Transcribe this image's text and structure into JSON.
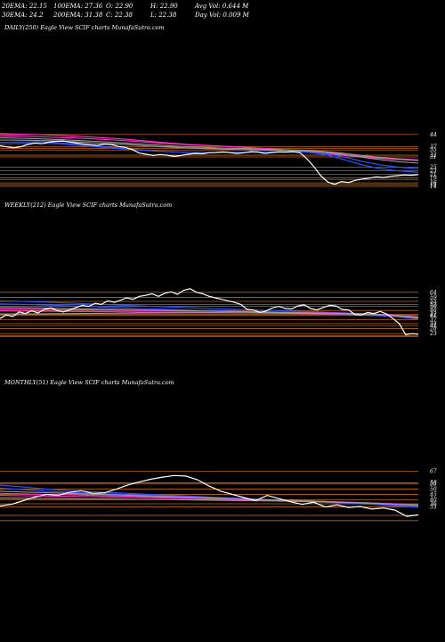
{
  "stats": {
    "ema20": "20EMA: 22.15",
    "ema100": "100EMA: 27.36",
    "open": "O: 22.90",
    "high": "H: 22.90",
    "avg_vol": "Avg Vol: 0.644 M",
    "ema30": "30EMA: 24.2",
    "ema200": "200EMA: 31.38",
    "close": "C: 22.38",
    "low": "L: 22.38",
    "day_vol": "Day Vol: 0.009 M"
  },
  "panels": {
    "daily": {
      "title": "DAILY(250) Eagle   View  SCIF charts MunafaSutra.com"
    },
    "weekly": {
      "title": "WEEKLY(212) Eagle   View  SCIF charts MunafaSutra.com"
    },
    "monthly": {
      "title": "MONTHLY(51) Eagle   View  SCIF charts MunafaSutra.com"
    }
  },
  "colors": {
    "background": "#000000",
    "price_line": "#ffffff",
    "level_line": "#b8651d",
    "ema_blue": "#3355ff",
    "ema_magenta": "#ff33cc",
    "ema_gray": "#9a9a9a"
  },
  "chart_data": [
    {
      "type": "line",
      "name": "daily",
      "ylim": [
        14,
        48
      ],
      "levels": [
        44,
        37,
        36,
        35,
        32,
        31,
        25,
        23,
        21,
        19,
        18,
        16,
        15,
        14
      ],
      "level_labels": [
        "44",
        "37",
        "35",
        "32",
        "31",
        "25",
        "23",
        "21",
        "19",
        "16",
        "15",
        "14"
      ],
      "price": [
        37.5,
        36.8,
        36.2,
        36.9,
        38.2,
        39.0,
        38.6,
        39.5,
        40.0,
        40.2,
        39.6,
        39.0,
        38.4,
        38.0,
        37.7,
        38.4,
        38.2,
        37.0,
        36.5,
        35.2,
        33.2,
        32.5,
        31.8,
        32.4,
        32.0,
        31.3,
        31.8,
        32.6,
        33.0,
        32.8,
        33.4,
        33.6,
        33.9,
        33.5,
        33.0,
        33.4,
        34.1,
        33.9,
        33.0,
        33.6,
        33.9,
        33.8,
        34.0,
        33.5,
        30.0,
        25.5,
        20.2,
        16.5,
        15.2,
        16.8,
        16.2,
        17.5,
        18.2,
        18.8,
        19.5,
        19.1,
        19.8,
        20.2,
        20.6,
        20.4,
        20.8
      ],
      "emas": [
        {
          "color": "ema_magenta",
          "values": [
            44.5,
            44.2,
            43.9,
            43.5,
            43.0,
            42.4,
            41.7,
            40.9,
            39.9,
            39.0,
            38.2,
            37.6,
            37.1,
            36.5,
            35.8,
            35.1,
            34.2,
            33.0,
            32.0,
            31.0,
            30.2,
            29.5,
            29.0
          ]
        },
        {
          "color": "ema_magenta",
          "values": [
            43.2,
            43.0,
            42.7,
            42.3,
            41.9,
            41.4,
            40.8,
            40.1,
            39.3,
            38.6,
            38.0,
            37.5,
            37.0,
            36.4,
            35.7,
            35.0,
            34.2,
            33.2,
            32.3,
            31.4,
            30.6,
            29.9,
            29.3
          ]
        },
        {
          "color": "ema_blue",
          "values": [
            39.5,
            39.6,
            39.7,
            39.3,
            38.5,
            37.5,
            36.4,
            35.5,
            34.6,
            34.0,
            33.6,
            33.5,
            33.6,
            33.7,
            33.8,
            33.9,
            34.0,
            32.5,
            29.8,
            26.5,
            24.2,
            22.9,
            22.1
          ]
        },
        {
          "color": "ema_blue",
          "values": [
            38.5,
            38.8,
            38.9,
            38.6,
            37.8,
            36.9,
            36.0,
            35.2,
            34.5,
            34.0,
            33.7,
            33.6,
            33.6,
            33.7,
            33.8,
            33.9,
            34.0,
            33.1,
            31.2,
            28.6,
            26.4,
            25.0,
            24.2
          ]
        },
        {
          "color": "ema_gray",
          "values": [
            40.8,
            40.7,
            40.5,
            40.2,
            39.7,
            39.1,
            38.5,
            37.9,
            37.2,
            36.6,
            36.1,
            35.7,
            35.4,
            35.1,
            34.9,
            34.7,
            34.5,
            33.9,
            32.6,
            30.9,
            29.4,
            28.2,
            27.4
          ]
        },
        {
          "color": "ema_gray",
          "values": [
            42.0,
            41.8,
            41.5,
            41.1,
            40.6,
            40.0,
            39.4,
            38.7,
            38.0,
            37.4,
            36.8,
            36.4,
            36.0,
            35.7,
            35.4,
            35.1,
            34.8,
            34.2,
            33.2,
            31.9,
            30.7,
            29.7,
            28.9
          ]
        }
      ]
    },
    {
      "type": "line",
      "name": "weekly",
      "ylim": [
        17,
        70
      ],
      "levels": [
        64,
        59,
        55,
        52,
        50,
        46,
        42,
        41,
        37,
        33,
        31,
        28,
        23,
        21,
        20
      ],
      "level_labels": [
        "64",
        "59",
        "55",
        "52",
        "50",
        "46",
        "42",
        "41",
        "37",
        "33",
        "31",
        "28",
        "23"
      ],
      "price": [
        38.0,
        41.5,
        40.0,
        44.5,
        43.0,
        45.5,
        43.5,
        47.0,
        48.5,
        46.0,
        44.5,
        46.5,
        49.0,
        51.0,
        50.0,
        53.0,
        52.0,
        55.5,
        54.0,
        56.0,
        58.5,
        57.0,
        60.0,
        61.0,
        62.5,
        60.0,
        63.0,
        64.5,
        62.0,
        66.0,
        67.5,
        64.0,
        62.5,
        60.0,
        58.5,
        57.0,
        55.5,
        54.0,
        52.0,
        47.0,
        46.5,
        44.0,
        45.5,
        48.5,
        50.0,
        48.0,
        47.5,
        50.5,
        51.5,
        48.0,
        46.5,
        49.0,
        51.0,
        50.5,
        47.0,
        46.5,
        42.0,
        41.5,
        44.0,
        43.0,
        45.0,
        42.5,
        38.0,
        33.0,
        22.0,
        23.0,
        22.5
      ],
      "emas": [
        {
          "color": "ema_blue",
          "values": [
            55.5,
            54.8,
            53.8,
            52.8,
            51.6,
            50.5,
            49.5,
            48.5,
            47.5,
            46.6,
            45.8,
            44.9,
            44.0,
            42.8,
            41.4,
            38.5
          ]
        },
        {
          "color": "ema_blue",
          "values": [
            52.5,
            52.0,
            51.0,
            50.0,
            49.0,
            48.0,
            47.0,
            46.2,
            45.5,
            44.8,
            44.0,
            43.3,
            42.5,
            41.5,
            40.2,
            37.5
          ]
        },
        {
          "color": "ema_magenta",
          "values": [
            47.5,
            47.2,
            46.8,
            46.5,
            46.2,
            45.9,
            45.6,
            45.3,
            45.0,
            44.7,
            44.3,
            43.9,
            43.5,
            42.8,
            41.8,
            39.5
          ]
        },
        {
          "color": "ema_magenta",
          "values": [
            45.5,
            45.3,
            45.1,
            44.9,
            44.7,
            44.5,
            44.3,
            44.1,
            43.8,
            43.5,
            43.2,
            42.9,
            42.5,
            41.9,
            41.0,
            39.0
          ]
        },
        {
          "color": "ema_gray",
          "values": [
            49.0,
            48.6,
            48.1,
            47.6,
            47.1,
            46.6,
            46.1,
            45.6,
            45.1,
            44.6,
            44.1,
            43.6,
            43.1,
            42.5,
            41.6,
            39.0
          ]
        },
        {
          "color": "ema_gray",
          "values": [
            42.5,
            42.6,
            42.8,
            43.0,
            43.2,
            43.4,
            43.6,
            43.7,
            43.7,
            43.6,
            43.4,
            43.1,
            42.7,
            42.1,
            41.3,
            38.5
          ]
        }
      ]
    },
    {
      "type": "line",
      "name": "monthly",
      "ylim": [
        19,
        82
      ],
      "levels": [
        67,
        56,
        55,
        50,
        45,
        40,
        36,
        33,
        25,
        20
      ],
      "level_labels": [
        "67",
        "56",
        "55",
        "50",
        "45",
        "40",
        "36",
        "33"
      ],
      "price": [
        34.0,
        35.5,
        39.0,
        42.5,
        45.0,
        44.0,
        47.0,
        48.5,
        46.0,
        46.5,
        50.0,
        54.0,
        57.0,
        59.5,
        61.5,
        63.0,
        62.5,
        59.0,
        53.0,
        48.0,
        45.0,
        42.0,
        39.0,
        44.0,
        41.0,
        38.0,
        35.5,
        37.5,
        33.0,
        35.0,
        32.5,
        33.5,
        31.0,
        32.0,
        30.0,
        24.0,
        25.5
      ],
      "emas": [
        {
          "color": "ema_blue",
          "values": [
            54.0,
            52.0,
            50.0,
            48.5,
            47.5,
            46.5,
            45.5,
            44.5,
            43.5,
            42.5,
            41.5,
            40.5,
            39.5,
            38.5,
            37.5,
            36.5,
            35.5,
            34.0,
            32.5
          ]
        },
        {
          "color": "ema_blue",
          "values": [
            51.0,
            49.5,
            48.0,
            47.0,
            46.0,
            45.2,
            44.4,
            43.6,
            42.8,
            42.0,
            41.2,
            40.4,
            39.6,
            38.8,
            37.9,
            37.0,
            36.0,
            34.8,
            33.5
          ]
        },
        {
          "color": "ema_magenta",
          "values": [
            46.0,
            45.5,
            45.0,
            44.5,
            44.0,
            43.5,
            43.0,
            42.5,
            42.0,
            41.4,
            40.8,
            40.2,
            39.6,
            39.0,
            38.3,
            37.6,
            36.8,
            36.0,
            35.0
          ]
        },
        {
          "color": "ema_magenta",
          "values": [
            44.0,
            43.7,
            43.4,
            43.1,
            42.8,
            42.4,
            42.0,
            41.6,
            41.2,
            40.7,
            40.2,
            39.7,
            39.2,
            38.7,
            38.1,
            37.5,
            36.8,
            36.0,
            35.2
          ]
        },
        {
          "color": "ema_gray",
          "values": [
            48.0,
            47.3,
            46.6,
            45.9,
            45.2,
            44.5,
            43.8,
            43.1,
            42.4,
            41.7,
            41.0,
            40.3,
            39.6,
            38.9,
            38.2,
            37.4,
            36.6,
            35.6,
            34.5
          ]
        },
        {
          "color": "ema_gray",
          "values": [
            41.5,
            41.3,
            41.1,
            40.9,
            40.7,
            40.5,
            40.3,
            40.1,
            39.8,
            39.5,
            39.2,
            38.9,
            38.6,
            38.2,
            37.7,
            37.1,
            36.4,
            35.6,
            34.7
          ]
        }
      ]
    }
  ]
}
